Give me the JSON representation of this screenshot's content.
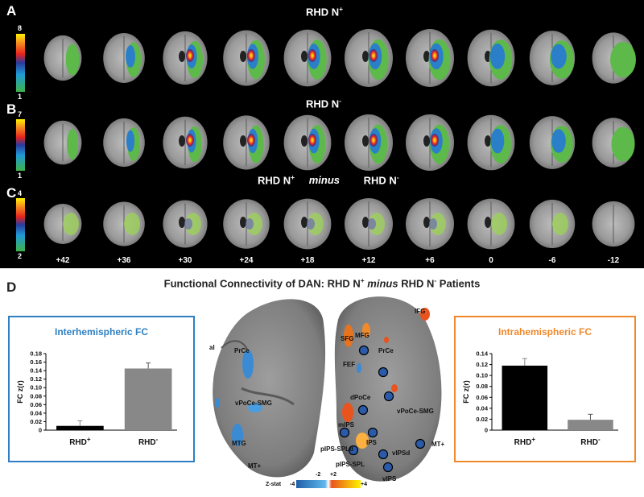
{
  "panels": {
    "A": {
      "label": "A",
      "title": "RHD N",
      "sup": "+",
      "colorbar": {
        "max": "8",
        "min": "1"
      }
    },
    "B": {
      "label": "B",
      "title": "RHD N",
      "sup": "-",
      "colorbar": {
        "max": "7",
        "min": "1"
      }
    },
    "C": {
      "label": "C",
      "title_left": "RHD N",
      "sup_left": "+",
      "title_mid": "minus",
      "title_right": "RHD N",
      "sup_right": "-",
      "colorbar": {
        "max": "4",
        "min": "2"
      }
    },
    "slices": [
      "+42",
      "+36",
      "+30",
      "+24",
      "+18",
      "+12",
      "+6",
      "0",
      "-6",
      "-12"
    ]
  },
  "panelD": {
    "label": "D",
    "title_a": "Functional Connectivity of DAN: RHD N",
    "title_sup_a": "+",
    "title_mid": "minus",
    "title_b": " RHD N",
    "title_sup_b": "-",
    "title_c": " Patients",
    "left_rois": [
      "al",
      "PrCe",
      "vPoCe-SMG",
      "MTG",
      "MT+"
    ],
    "right_rois": [
      "IFG",
      "SFG",
      "MFG",
      "PrCe",
      "FEF",
      "dPoCe",
      "vPoCe-SMG",
      "mIPS",
      "pIPS-SPLd",
      "IPS",
      "vIPSd",
      "pIPS-SPL",
      "vIPS",
      "MT+"
    ],
    "zstat": {
      "label": "Z-stat",
      "ticks": [
        "-4",
        "-2",
        "+2",
        "+4"
      ]
    }
  },
  "colors": {
    "inter": "#2f7fc1",
    "intra": "#f0892b",
    "bar_black": "#000000",
    "bar_gray": "#888888"
  },
  "chart_data": [
    {
      "type": "bar",
      "title": "Interhemispheric FC",
      "ylabel": "FC z(r)",
      "categories": [
        "RHD +",
        "RHD -"
      ],
      "values": [
        0.01,
        0.145
      ],
      "errors": [
        0.012,
        0.013
      ],
      "ylim": [
        0,
        0.18
      ],
      "yticks": [
        "0",
        "0.02",
        "0.04",
        "0.06",
        "0.08",
        "0.10",
        "0.12",
        "0.14",
        "0.16",
        "0.18"
      ]
    },
    {
      "type": "bar",
      "title": "Intrahemispheric FC",
      "ylabel": "FC z(r)",
      "categories": [
        "RHD +",
        "RHD -"
      ],
      "values": [
        0.118,
        0.019
      ],
      "errors": [
        0.013,
        0.01
      ],
      "ylim": [
        0,
        0.14
      ],
      "yticks": [
        "0",
        "0.02",
        "0.04",
        "0.06",
        "0.08",
        "0.10",
        "0.12",
        "0.14"
      ]
    }
  ]
}
